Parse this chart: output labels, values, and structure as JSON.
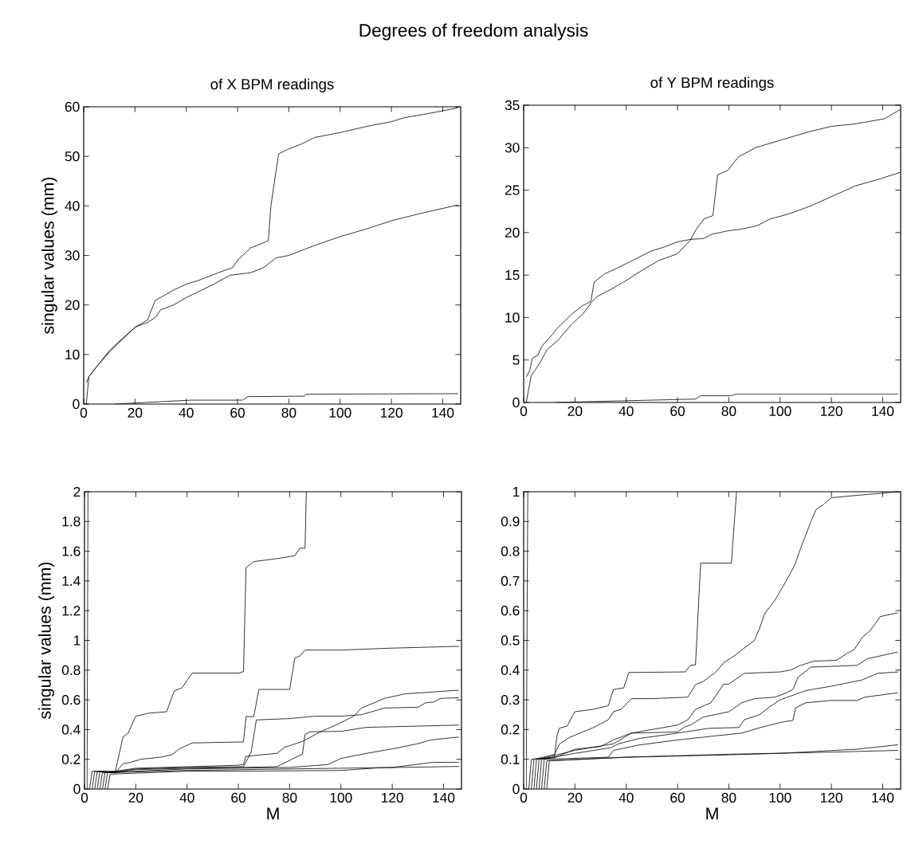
{
  "chart_data": [
    {
      "type": "line",
      "title": "of X BPM readings",
      "ylabel": "singular values (mm)",
      "annotations": [
        "Degrees of freedom analysis"
      ],
      "xlim": [
        0,
        147
      ],
      "ylim": [
        0,
        60
      ],
      "xticks": [
        0,
        20,
        40,
        60,
        80,
        100,
        120,
        140
      ],
      "yticks": [
        0,
        10,
        20,
        30,
        40,
        50,
        60
      ],
      "line_style": "solid",
      "series": [
        {
          "color": "#000000",
          "x": [
            1,
            2,
            5,
            10,
            15,
            20,
            25,
            26,
            28,
            30,
            35,
            40,
            45,
            50,
            55,
            58,
            60,
            65,
            70,
            72,
            73,
            75,
            76,
            78,
            80,
            85,
            90,
            100,
            110,
            120,
            125,
            135,
            146
          ],
          "values": [
            4.3,
            5.5,
            7.5,
            10.8,
            13.2,
            15.5,
            17,
            18.5,
            21,
            21.5,
            23,
            24.2,
            25,
            26,
            27,
            27.5,
            29,
            31.5,
            32.5,
            33,
            40,
            47,
            50.5,
            51,
            51.5,
            52.5,
            53.8,
            54.8,
            56,
            57,
            57.8,
            58.7,
            59.8
          ]
        },
        {
          "color": "#000000",
          "x": [
            1,
            2,
            5,
            10,
            15,
            20,
            25,
            28,
            30,
            35,
            40,
            50,
            57,
            65,
            70,
            75,
            80,
            90,
            100,
            110,
            120,
            130,
            146
          ],
          "values": [
            0,
            5.5,
            7.5,
            10.5,
            13,
            15.5,
            16.5,
            17.5,
            19,
            20,
            21.5,
            24,
            26,
            26.5,
            27.5,
            29.5,
            30,
            32,
            33.8,
            35.3,
            37,
            38.3,
            40.2
          ]
        },
        {
          "color": "#000000",
          "x": [
            12,
            42,
            62,
            64,
            86,
            87,
            146
          ],
          "values": [
            0,
            0.8,
            0.8,
            1.5,
            1.6,
            2,
            2.1
          ]
        }
      ]
    },
    {
      "type": "line",
      "title": "of Y BPM readings",
      "xlim": [
        0,
        147
      ],
      "ylim": [
        0,
        35
      ],
      "xticks": [
        0,
        20,
        40,
        60,
        80,
        100,
        120,
        140
      ],
      "yticks": [
        0,
        5,
        10,
        15,
        20,
        25,
        30,
        35
      ],
      "line_style": "solid",
      "series": [
        {
          "color": "#000000",
          "x": [
            1,
            2.4,
            3.4,
            5.6,
            7,
            11.2,
            13.3,
            16.4,
            19.5,
            23,
            26.2,
            27.5,
            31.9,
            37,
            44.3,
            49.5,
            54.7,
            59.9,
            65,
            70.2,
            73.3,
            79.5,
            84.7,
            90.9,
            96.1,
            103.4,
            111.6,
            122,
            129.3,
            137.6,
            146.9
          ],
          "values": [
            3,
            3.8,
            5.2,
            5.6,
            6.6,
            8,
            8.8,
            9.7,
            10.6,
            11.4,
            11.9,
            14.2,
            15.2,
            15.9,
            17,
            17.8,
            18.3,
            18.9,
            19.2,
            19.3,
            19.8,
            20.2,
            20.4,
            20.8,
            21.6,
            22.2,
            23.1,
            24.5,
            25.5,
            26.2,
            27.1
          ]
        },
        {
          "color": "#000000",
          "x": [
            1,
            2.9,
            6,
            9.1,
            13.3,
            18.4,
            23.6,
            26.7,
            28.8,
            33.9,
            39.1,
            46.4,
            52.6,
            59.9,
            65,
            67.1,
            70.2,
            73.8,
            75.6,
            79.5,
            83.7,
            90.4,
            100.3,
            111.6,
            119.9,
            129.3,
            140.7,
            146.9
          ],
          "values": [
            0,
            3.1,
            4.5,
            6.2,
            7.3,
            9.1,
            10.6,
            11.9,
            12.5,
            13.3,
            14.2,
            15.6,
            16.7,
            17.5,
            19.1,
            20.3,
            21.6,
            22,
            26.8,
            27.3,
            28.9,
            30,
            30.9,
            31.9,
            32.5,
            32.8,
            33.4,
            34.5
          ]
        },
        {
          "color": "#000000",
          "x": [
            12,
            67,
            69,
            81,
            83,
            146
          ],
          "values": [
            0,
            0.4,
            0.8,
            0.8,
            1,
            1
          ]
        }
      ]
    },
    {
      "type": "line",
      "xlabel": "M",
      "ylabel": "singular values (mm)",
      "xlim": [
        0,
        147
      ],
      "ylim": [
        0,
        2
      ],
      "xticks": [
        0,
        20,
        40,
        60,
        80,
        100,
        120,
        140
      ],
      "yticks": [
        0,
        0.2,
        0.4,
        0.6,
        0.8,
        1,
        1.2,
        1.4,
        1.6,
        1.8,
        2
      ],
      "line_style": "solid",
      "series": [
        {
          "color": "#000000",
          "x": [
            1,
            1.36
          ],
          "values": [
            0,
            2
          ]
        },
        {
          "color": "#000000",
          "x": [
            2,
            3,
            10,
            12,
            15,
            17,
            20,
            25,
            32,
            35,
            38,
            42,
            60,
            62,
            63,
            66,
            75,
            82,
            84,
            86,
            86.5
          ],
          "values": [
            0,
            0.12,
            0.11,
            0.116,
            0.35,
            0.375,
            0.49,
            0.51,
            0.52,
            0.66,
            0.68,
            0.78,
            0.78,
            0.79,
            1.49,
            1.53,
            1.55,
            1.57,
            1.62,
            1.62,
            2.0
          ]
        },
        {
          "color": "#000000",
          "x": [
            3,
            4,
            12,
            15,
            18,
            22,
            30,
            34,
            37,
            42,
            62,
            63,
            66,
            68,
            80,
            82,
            84,
            86,
            100,
            120,
            146
          ],
          "values": [
            0,
            0.12,
            0.11,
            0.17,
            0.18,
            0.2,
            0.215,
            0.23,
            0.27,
            0.31,
            0.317,
            0.487,
            0.487,
            0.67,
            0.67,
            0.88,
            0.895,
            0.935,
            0.935,
            0.948,
            0.96
          ]
        },
        {
          "color": "#000000",
          "x": [
            4,
            5,
            12,
            20,
            40,
            60,
            62,
            63,
            66,
            75,
            78,
            85,
            92,
            98,
            105,
            108,
            113,
            117,
            125,
            146
          ],
          "values": [
            0,
            0.12,
            0.12,
            0.14,
            0.15,
            0.16,
            0.165,
            0.22,
            0.225,
            0.24,
            0.28,
            0.32,
            0.385,
            0.43,
            0.49,
            0.545,
            0.58,
            0.61,
            0.64,
            0.665
          ]
        },
        {
          "color": "#000000",
          "x": [
            5,
            6,
            12,
            20,
            40,
            62,
            65,
            67,
            80,
            90,
            100,
            108,
            112,
            117,
            130,
            133,
            136,
            139,
            146
          ],
          "values": [
            0,
            0.12,
            0.11,
            0.135,
            0.145,
            0.15,
            0.25,
            0.465,
            0.474,
            0.49,
            0.49,
            0.5,
            0.52,
            0.545,
            0.55,
            0.58,
            0.585,
            0.61,
            0.614
          ]
        },
        {
          "color": "#000000",
          "x": [
            6,
            7,
            20,
            40,
            60,
            75,
            85,
            86,
            88,
            100,
            110,
            146
          ],
          "values": [
            0,
            0.11,
            0.13,
            0.14,
            0.145,
            0.15,
            0.236,
            0.367,
            0.385,
            0.388,
            0.415,
            0.43
          ]
        },
        {
          "color": "#000000",
          "x": [
            7,
            8,
            40,
            80,
            95,
            100,
            110,
            120,
            130,
            135,
            146
          ],
          "values": [
            0,
            0.11,
            0.135,
            0.145,
            0.165,
            0.206,
            0.24,
            0.27,
            0.305,
            0.33,
            0.35
          ]
        },
        {
          "color": "#000000",
          "x": [
            8,
            9,
            40,
            80,
            100,
            120,
            136,
            146
          ],
          "values": [
            0,
            0.11,
            0.125,
            0.135,
            0.14,
            0.145,
            0.18,
            0.18
          ]
        },
        {
          "color": "#000000",
          "x": [
            9,
            10,
            40,
            60,
            100,
            115,
            146
          ],
          "values": [
            0,
            0.1,
            0.12,
            0.12,
            0.125,
            0.143,
            0.152
          ]
        }
      ]
    },
    {
      "type": "line",
      "xlabel": "M",
      "xlim": [
        0,
        147
      ],
      "ylim": [
        0,
        1
      ],
      "xticks": [
        0,
        20,
        40,
        60,
        80,
        100,
        120,
        140
      ],
      "yticks": [
        0,
        0.1,
        0.2,
        0.3,
        0.4,
        0.5,
        0.6,
        0.7,
        0.8,
        0.9,
        1
      ],
      "line_style": "solid",
      "series": [
        {
          "color": "#000000",
          "x": [
            1,
            1.6
          ],
          "values": [
            0,
            1
          ]
        },
        {
          "color": "#000000",
          "x": [
            2,
            3,
            12,
            13,
            14,
            17,
            19,
            20,
            27,
            33,
            35,
            39,
            41,
            63,
            65,
            67,
            69,
            81,
            83
          ],
          "values": [
            0,
            0.1,
            0.107,
            0.18,
            0.205,
            0.212,
            0.246,
            0.26,
            0.268,
            0.28,
            0.335,
            0.34,
            0.392,
            0.394,
            0.416,
            0.418,
            0.76,
            0.76,
            1.0
          ]
        },
        {
          "color": "#000000",
          "x": [
            3,
            4,
            12,
            14,
            18,
            23,
            27,
            33,
            35,
            38,
            40,
            42,
            50,
            64,
            67,
            70,
            75,
            78,
            82,
            86,
            90,
            92,
            94,
            98,
            101,
            104,
            106,
            108,
            110,
            112,
            114,
            117,
            120,
            130,
            140,
            146
          ],
          "values": [
            0,
            0.1,
            0.116,
            0.152,
            0.174,
            0.192,
            0.206,
            0.233,
            0.26,
            0.268,
            0.286,
            0.304,
            0.304,
            0.309,
            0.351,
            0.362,
            0.394,
            0.425,
            0.447,
            0.474,
            0.5,
            0.541,
            0.59,
            0.635,
            0.68,
            0.725,
            0.76,
            0.81,
            0.854,
            0.9,
            0.94,
            0.958,
            0.98,
            0.988,
            0.995,
            1.0
          ]
        },
        {
          "color": "#000000",
          "x": [
            4,
            5,
            12,
            20,
            30,
            35,
            42,
            50,
            60,
            64,
            67,
            73,
            78,
            80,
            86,
            100,
            104,
            108,
            113,
            122,
            126,
            129,
            132,
            135,
            137,
            139,
            146
          ],
          "values": [
            0,
            0.1,
            0.105,
            0.134,
            0.143,
            0.165,
            0.188,
            0.2,
            0.215,
            0.233,
            0.268,
            0.29,
            0.353,
            0.353,
            0.389,
            0.394,
            0.4,
            0.416,
            0.43,
            0.433,
            0.456,
            0.47,
            0.51,
            0.532,
            0.555,
            0.58,
            0.593
          ]
        },
        {
          "color": "#000000",
          "x": [
            5,
            6,
            20,
            35,
            42,
            60,
            63,
            65,
            70,
            80,
            85,
            90,
            98,
            102,
            105,
            107,
            112,
            130,
            134,
            146
          ],
          "values": [
            0,
            0.1,
            0.13,
            0.152,
            0.188,
            0.192,
            0.21,
            0.215,
            0.242,
            0.26,
            0.29,
            0.304,
            0.309,
            0.322,
            0.335,
            0.376,
            0.41,
            0.416,
            0.438,
            0.461
          ]
        },
        {
          "color": "#000000",
          "x": [
            6,
            7,
            20,
            34,
            37,
            45,
            60,
            63,
            72,
            84,
            86,
            92,
            96,
            100,
            110,
            120,
            132,
            138,
            146
          ],
          "values": [
            0,
            0.1,
            0.12,
            0.139,
            0.152,
            0.17,
            0.188,
            0.192,
            0.204,
            0.207,
            0.233,
            0.25,
            0.277,
            0.3,
            0.331,
            0.346,
            0.367,
            0.389,
            0.394
          ]
        },
        {
          "color": "#000000",
          "x": [
            7,
            8,
            33,
            35,
            45,
            60,
            75,
            85,
            92,
            100,
            105,
            106,
            110,
            120,
            130,
            133,
            146
          ],
          "values": [
            0,
            0.1,
            0.107,
            0.13,
            0.148,
            0.165,
            0.179,
            0.188,
            0.206,
            0.224,
            0.231,
            0.273,
            0.29,
            0.298,
            0.298,
            0.309,
            0.324
          ]
        },
        {
          "color": "#000000",
          "x": [
            8,
            9,
            40,
            80,
            100,
            130,
            146
          ],
          "values": [
            0,
            0.095,
            0.107,
            0.115,
            0.12,
            0.134,
            0.149
          ]
        },
        {
          "color": "#000000",
          "x": [
            9,
            10,
            40,
            80,
            120,
            146
          ],
          "values": [
            0,
            0.095,
            0.107,
            0.117,
            0.124,
            0.13
          ]
        }
      ]
    }
  ]
}
